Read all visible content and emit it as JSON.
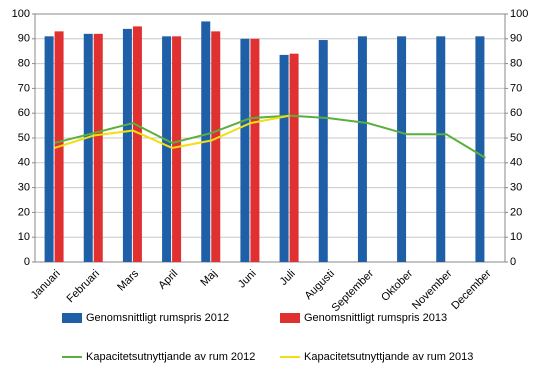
{
  "chart_data": {
    "type": "bar",
    "categories": [
      "Januari",
      "Februari",
      "Mars",
      "April",
      "Maj",
      "Juni",
      "Juli",
      "Augusti",
      "September",
      "Oktober",
      "November",
      "December"
    ],
    "series": [
      {
        "name": "Genomsnittligt rumspris 2012",
        "type": "bar",
        "color": "#1f5fa8",
        "values": [
          91,
          92,
          94,
          91,
          97,
          90,
          83.5,
          89.5,
          91,
          91,
          91,
          91
        ]
      },
      {
        "name": "Genomsnittligt rumspris 2013",
        "type": "bar",
        "color": "#e03030",
        "values": [
          93,
          92,
          95,
          91,
          93,
          90,
          84,
          null,
          null,
          null,
          null,
          null
        ]
      },
      {
        "name": "Kapacitetsutnyttjande av rum 2012",
        "type": "line",
        "axis": "y2",
        "color": "#5ab03c",
        "values": [
          48,
          52,
          56,
          48,
          52,
          58,
          59,
          58,
          56,
          51.5,
          51.5,
          42
        ]
      },
      {
        "name": "Kapacitetsutnyttjande av rum 2013",
        "type": "line",
        "axis": "y2",
        "color": "#f0e010",
        "values": [
          46,
          51,
          53,
          46,
          49,
          56,
          59,
          null,
          null,
          null,
          null,
          null
        ]
      }
    ],
    "ylim": [
      0,
      100
    ],
    "yticks": [
      0,
      10,
      20,
      30,
      40,
      50,
      60,
      70,
      80,
      90,
      100
    ],
    "y2lim": [
      0,
      100
    ],
    "y2ticks": [
      0,
      10,
      20,
      30,
      40,
      50,
      60,
      70,
      80,
      90,
      100
    ],
    "grid": true
  }
}
